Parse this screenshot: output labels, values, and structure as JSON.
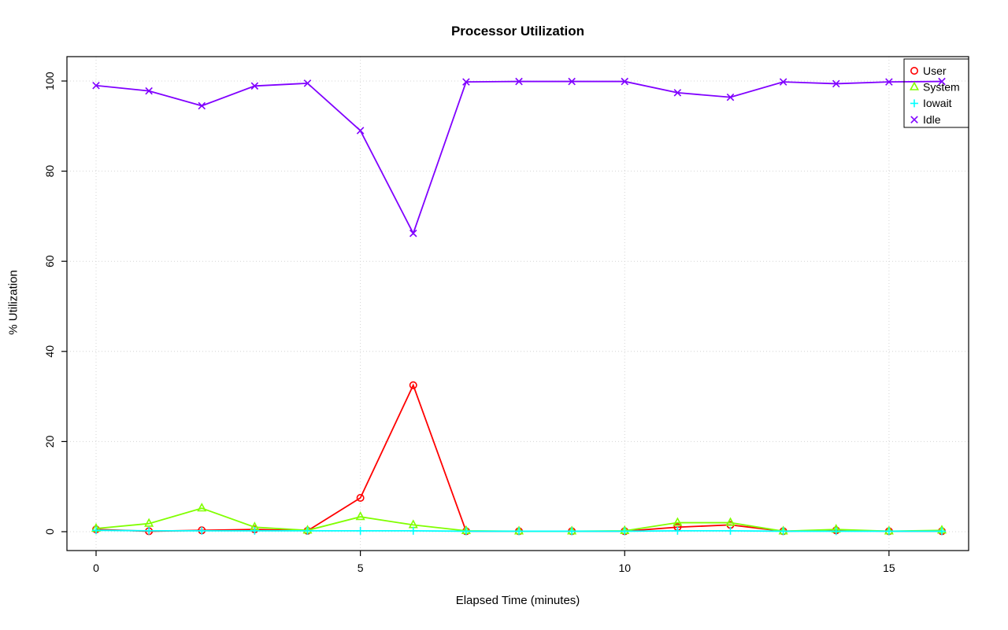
{
  "chart_data": {
    "type": "line",
    "title": "Processor Utilization",
    "xlabel": "Elapsed Time (minutes)",
    "ylabel": "% Utilization",
    "xlim": [
      0,
      16
    ],
    "ylim": [
      0,
      100
    ],
    "xticks": [
      0,
      5,
      10,
      15
    ],
    "yticks": [
      0,
      20,
      40,
      60,
      80,
      100
    ],
    "grid": true,
    "grid_style": "dotted",
    "grid_color": "#d4d4d4",
    "legend_position": "top-right",
    "x": [
      0,
      1,
      2,
      3,
      4,
      5,
      6,
      7,
      8,
      9,
      10,
      11,
      12,
      13,
      14,
      15,
      16
    ],
    "series": [
      {
        "name": "User",
        "color": "#FF0000",
        "marker": "circle",
        "values": [
          0.5,
          0.1,
          0.3,
          0.5,
          0.2,
          7.5,
          32.5,
          0.1,
          0.1,
          0.1,
          0.1,
          1.0,
          1.5,
          0.1,
          0.3,
          0.1,
          0.1
        ]
      },
      {
        "name": "System",
        "color": "#80FF00",
        "marker": "triangle",
        "values": [
          0.7,
          1.8,
          5.2,
          1.0,
          0.3,
          3.3,
          1.5,
          0.2,
          0.1,
          0.1,
          0.2,
          2.0,
          2.0,
          0.1,
          0.5,
          0.1,
          0.3
        ]
      },
      {
        "name": "Iowait",
        "color": "#00FFFF",
        "marker": "plus",
        "values": [
          0.3,
          0.2,
          0.2,
          0.2,
          0.2,
          0.2,
          0.2,
          0.1,
          0.1,
          0.1,
          0.1,
          0.2,
          0.2,
          0.1,
          0.1,
          0.1,
          0.1
        ]
      },
      {
        "name": "Idle",
        "color": "#8000FF",
        "marker": "x",
        "values": [
          99.0,
          97.8,
          94.5,
          98.9,
          99.5,
          89.0,
          66.2,
          99.8,
          99.9,
          99.9,
          99.9,
          97.4,
          96.4,
          99.8,
          99.4,
          99.8,
          99.9
        ]
      }
    ]
  }
}
